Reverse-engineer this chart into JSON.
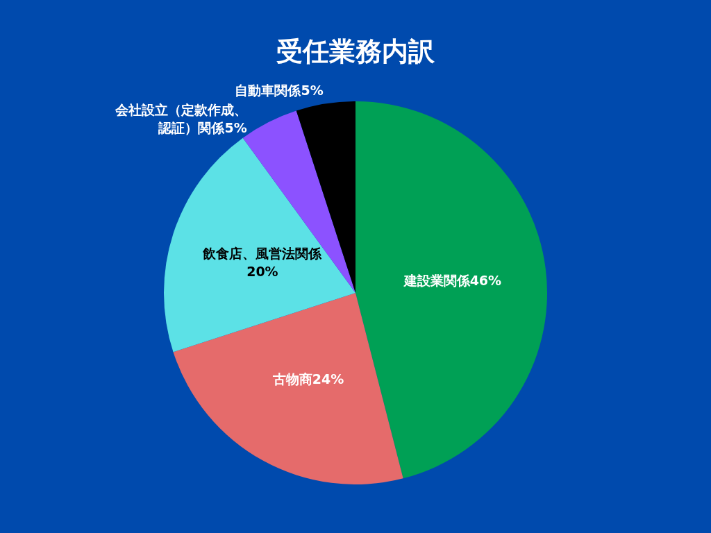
{
  "chart_data": {
    "type": "pie",
    "title": "受任業務内訳",
    "categories": [
      "建設業関係",
      "古物商",
      "飲食店、風営法関係",
      "会社設立（定款作成、認証）関係",
      "自動車関係"
    ],
    "values": [
      46,
      24,
      20,
      5,
      5
    ],
    "value_labels": [
      "46%",
      "24%",
      "20%",
      "5%",
      "5%"
    ],
    "colors": [
      "#00a055",
      "#e56b6b",
      "#5ce1e6",
      "#8c52ff",
      "#000000"
    ],
    "legend": false
  }
}
